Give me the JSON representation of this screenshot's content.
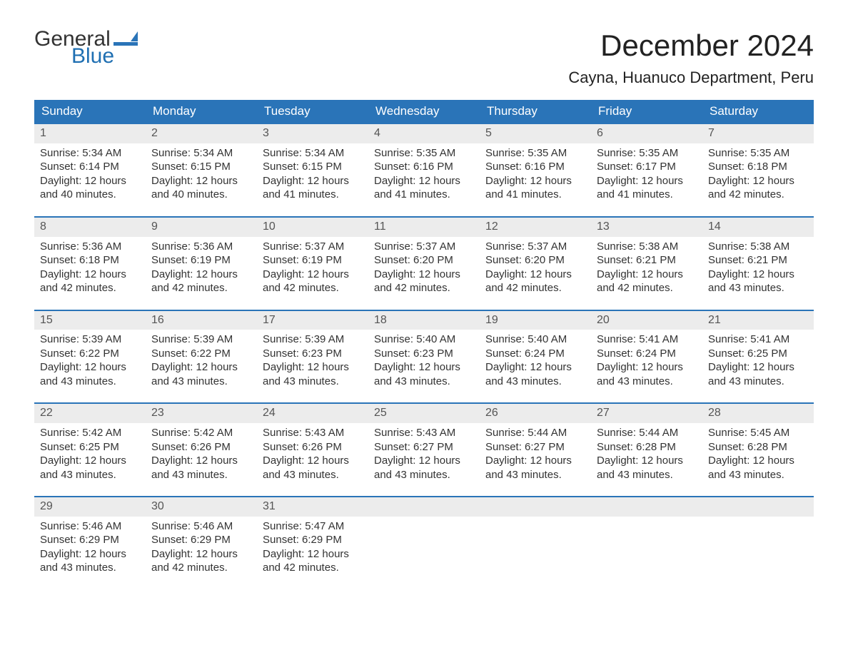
{
  "brand": {
    "part1": "General",
    "part2": "Blue",
    "flag_color": "#2a74b8"
  },
  "title": "December 2024",
  "location": "Cayna, Huanuco Department, Peru",
  "colors": {
    "header_bg": "#2a74b8",
    "header_text": "#ffffff",
    "row_border": "#2a74b8",
    "daynum_bg": "#ececec",
    "body_text": "#333333",
    "background": "#ffffff"
  },
  "typography": {
    "title_fontsize": 42,
    "location_fontsize": 22,
    "dayheader_fontsize": 17,
    "cell_fontsize": 15
  },
  "day_headers": [
    "Sunday",
    "Monday",
    "Tuesday",
    "Wednesday",
    "Thursday",
    "Friday",
    "Saturday"
  ],
  "weeks": [
    [
      {
        "n": "1",
        "sunrise": "Sunrise: 5:34 AM",
        "sunset": "Sunset: 6:14 PM",
        "daylight": "Daylight: 12 hours and 40 minutes."
      },
      {
        "n": "2",
        "sunrise": "Sunrise: 5:34 AM",
        "sunset": "Sunset: 6:15 PM",
        "daylight": "Daylight: 12 hours and 40 minutes."
      },
      {
        "n": "3",
        "sunrise": "Sunrise: 5:34 AM",
        "sunset": "Sunset: 6:15 PM",
        "daylight": "Daylight: 12 hours and 41 minutes."
      },
      {
        "n": "4",
        "sunrise": "Sunrise: 5:35 AM",
        "sunset": "Sunset: 6:16 PM",
        "daylight": "Daylight: 12 hours and 41 minutes."
      },
      {
        "n": "5",
        "sunrise": "Sunrise: 5:35 AM",
        "sunset": "Sunset: 6:16 PM",
        "daylight": "Daylight: 12 hours and 41 minutes."
      },
      {
        "n": "6",
        "sunrise": "Sunrise: 5:35 AM",
        "sunset": "Sunset: 6:17 PM",
        "daylight": "Daylight: 12 hours and 41 minutes."
      },
      {
        "n": "7",
        "sunrise": "Sunrise: 5:35 AM",
        "sunset": "Sunset: 6:18 PM",
        "daylight": "Daylight: 12 hours and 42 minutes."
      }
    ],
    [
      {
        "n": "8",
        "sunrise": "Sunrise: 5:36 AM",
        "sunset": "Sunset: 6:18 PM",
        "daylight": "Daylight: 12 hours and 42 minutes."
      },
      {
        "n": "9",
        "sunrise": "Sunrise: 5:36 AM",
        "sunset": "Sunset: 6:19 PM",
        "daylight": "Daylight: 12 hours and 42 minutes."
      },
      {
        "n": "10",
        "sunrise": "Sunrise: 5:37 AM",
        "sunset": "Sunset: 6:19 PM",
        "daylight": "Daylight: 12 hours and 42 minutes."
      },
      {
        "n": "11",
        "sunrise": "Sunrise: 5:37 AM",
        "sunset": "Sunset: 6:20 PM",
        "daylight": "Daylight: 12 hours and 42 minutes."
      },
      {
        "n": "12",
        "sunrise": "Sunrise: 5:37 AM",
        "sunset": "Sunset: 6:20 PM",
        "daylight": "Daylight: 12 hours and 42 minutes."
      },
      {
        "n": "13",
        "sunrise": "Sunrise: 5:38 AM",
        "sunset": "Sunset: 6:21 PM",
        "daylight": "Daylight: 12 hours and 42 minutes."
      },
      {
        "n": "14",
        "sunrise": "Sunrise: 5:38 AM",
        "sunset": "Sunset: 6:21 PM",
        "daylight": "Daylight: 12 hours and 43 minutes."
      }
    ],
    [
      {
        "n": "15",
        "sunrise": "Sunrise: 5:39 AM",
        "sunset": "Sunset: 6:22 PM",
        "daylight": "Daylight: 12 hours and 43 minutes."
      },
      {
        "n": "16",
        "sunrise": "Sunrise: 5:39 AM",
        "sunset": "Sunset: 6:22 PM",
        "daylight": "Daylight: 12 hours and 43 minutes."
      },
      {
        "n": "17",
        "sunrise": "Sunrise: 5:39 AM",
        "sunset": "Sunset: 6:23 PM",
        "daylight": "Daylight: 12 hours and 43 minutes."
      },
      {
        "n": "18",
        "sunrise": "Sunrise: 5:40 AM",
        "sunset": "Sunset: 6:23 PM",
        "daylight": "Daylight: 12 hours and 43 minutes."
      },
      {
        "n": "19",
        "sunrise": "Sunrise: 5:40 AM",
        "sunset": "Sunset: 6:24 PM",
        "daylight": "Daylight: 12 hours and 43 minutes."
      },
      {
        "n": "20",
        "sunrise": "Sunrise: 5:41 AM",
        "sunset": "Sunset: 6:24 PM",
        "daylight": "Daylight: 12 hours and 43 minutes."
      },
      {
        "n": "21",
        "sunrise": "Sunrise: 5:41 AM",
        "sunset": "Sunset: 6:25 PM",
        "daylight": "Daylight: 12 hours and 43 minutes."
      }
    ],
    [
      {
        "n": "22",
        "sunrise": "Sunrise: 5:42 AM",
        "sunset": "Sunset: 6:25 PM",
        "daylight": "Daylight: 12 hours and 43 minutes."
      },
      {
        "n": "23",
        "sunrise": "Sunrise: 5:42 AM",
        "sunset": "Sunset: 6:26 PM",
        "daylight": "Daylight: 12 hours and 43 minutes."
      },
      {
        "n": "24",
        "sunrise": "Sunrise: 5:43 AM",
        "sunset": "Sunset: 6:26 PM",
        "daylight": "Daylight: 12 hours and 43 minutes."
      },
      {
        "n": "25",
        "sunrise": "Sunrise: 5:43 AM",
        "sunset": "Sunset: 6:27 PM",
        "daylight": "Daylight: 12 hours and 43 minutes."
      },
      {
        "n": "26",
        "sunrise": "Sunrise: 5:44 AM",
        "sunset": "Sunset: 6:27 PM",
        "daylight": "Daylight: 12 hours and 43 minutes."
      },
      {
        "n": "27",
        "sunrise": "Sunrise: 5:44 AM",
        "sunset": "Sunset: 6:28 PM",
        "daylight": "Daylight: 12 hours and 43 minutes."
      },
      {
        "n": "28",
        "sunrise": "Sunrise: 5:45 AM",
        "sunset": "Sunset: 6:28 PM",
        "daylight": "Daylight: 12 hours and 43 minutes."
      }
    ],
    [
      {
        "n": "29",
        "sunrise": "Sunrise: 5:46 AM",
        "sunset": "Sunset: 6:29 PM",
        "daylight": "Daylight: 12 hours and 43 minutes."
      },
      {
        "n": "30",
        "sunrise": "Sunrise: 5:46 AM",
        "sunset": "Sunset: 6:29 PM",
        "daylight": "Daylight: 12 hours and 42 minutes."
      },
      {
        "n": "31",
        "sunrise": "Sunrise: 5:47 AM",
        "sunset": "Sunset: 6:29 PM",
        "daylight": "Daylight: 12 hours and 42 minutes."
      },
      null,
      null,
      null,
      null
    ]
  ]
}
